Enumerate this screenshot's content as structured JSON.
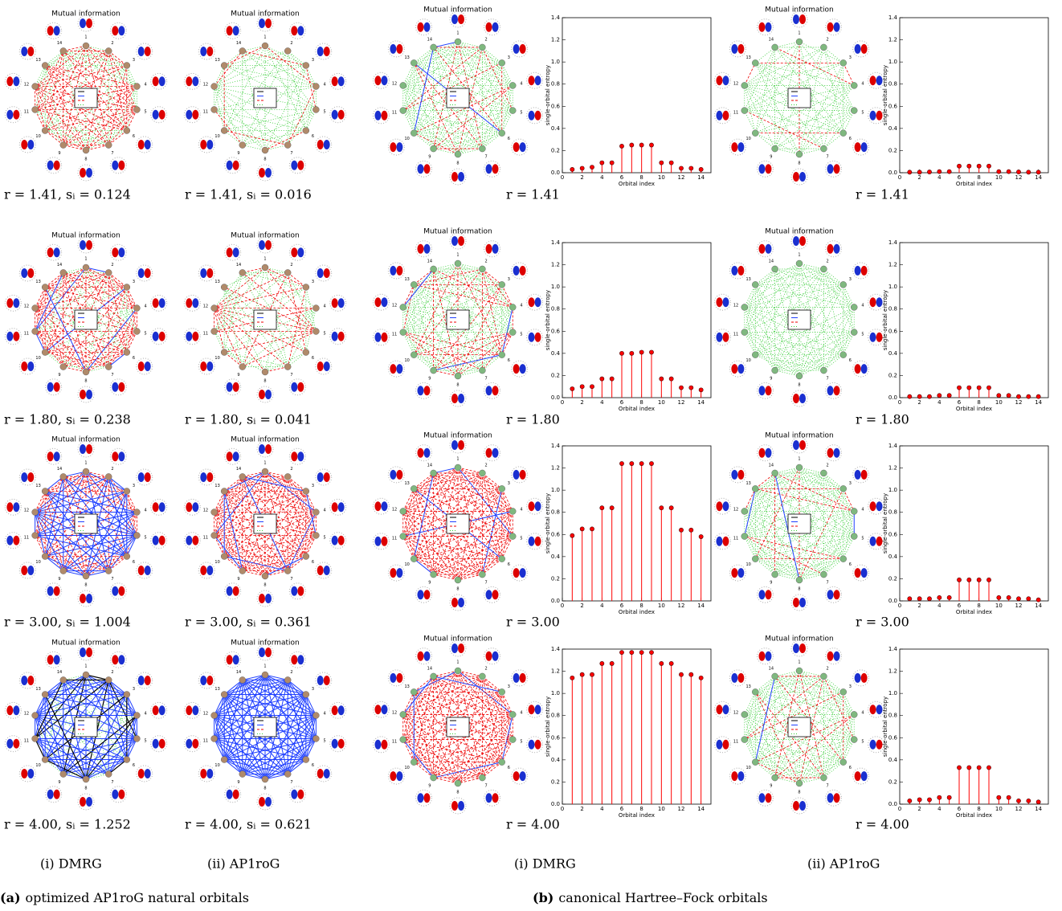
{
  "mi_title": "Mutual information",
  "node_labels": [
    "1",
    "2",
    "3",
    "4",
    "5",
    "6",
    "7",
    "8",
    "9",
    "10",
    "11",
    "12",
    "13",
    "14"
  ],
  "labels": [
    "r = 1.41, sᵢ = 0.124",
    "r = 1.41, sᵢ = 0.016",
    "r = 1.41",
    "r = 1.41",
    "r = 1.80, sᵢ = 0.238",
    "r = 1.80, sᵢ = 0.041",
    "r = 1.80",
    "r = 1.80",
    "r = 3.00, sᵢ = 1.004",
    "r = 3.00, sᵢ = 0.361",
    "r = 3.00",
    "r = 3.00",
    "r = 4.00, sᵢ = 1.252",
    "r = 4.00, sᵢ = 0.621",
    "r = 4.00",
    "r = 4.00"
  ],
  "subcaptions": [
    "(i) DMRG",
    "(ii) AP1roG",
    "(i) DMRG",
    "(ii) AP1roG"
  ],
  "captions": [
    {
      "tag": "(a)",
      "text": "optimized AP1roG natural orbitals"
    },
    {
      "tag": "(b)",
      "text": "canonical Hartree–Fock orbitals"
    }
  ],
  "chart_data": [
    {
      "type": "stem",
      "xlabel": "Orbital index",
      "ylabel": "single-orbital entropy",
      "color": "#ff0000",
      "x": [
        1,
        2,
        3,
        4,
        5,
        6,
        7,
        8,
        9,
        10,
        11,
        12,
        13,
        14
      ],
      "values": [
        0.03,
        0.04,
        0.05,
        0.09,
        0.09,
        0.24,
        0.25,
        0.25,
        0.25,
        0.09,
        0.09,
        0.04,
        0.04,
        0.03
      ],
      "xlim": [
        0,
        15
      ],
      "xticks": [
        0,
        2,
        4,
        6,
        8,
        10,
        12,
        14
      ],
      "ylim": [
        0,
        1.4
      ],
      "yticks": [
        {
          "value": 0,
          "label": "0.0"
        },
        {
          "value": 0.2,
          "label": "0.2"
        },
        {
          "value": 0.4,
          "label": "0.4"
        },
        {
          "value": 0.6,
          "label": "0.6"
        },
        {
          "value": 0.8,
          "label": "0.8"
        },
        {
          "value": 1,
          "label": "1.0"
        },
        {
          "value": 1.2,
          "label": "1.2"
        },
        {
          "value": 1.4,
          "label": "1.4"
        }
      ]
    },
    {
      "type": "stem",
      "xlabel": "Orbital index",
      "ylabel": "single-orbital entropy",
      "color": "#ff0000",
      "x": [
        1,
        2,
        3,
        4,
        5,
        6,
        7,
        8,
        9,
        10,
        11,
        12,
        13,
        14
      ],
      "values": [
        0.005,
        0.005,
        0.007,
        0.01,
        0.01,
        0.06,
        0.06,
        0.06,
        0.06,
        0.01,
        0.01,
        0.007,
        0.005,
        0.005
      ],
      "xlim": [
        0,
        15
      ],
      "xticks": [
        0,
        2,
        4,
        6,
        8,
        10,
        12,
        14
      ],
      "ylim": [
        0,
        1.4
      ],
      "yticks": [
        {
          "value": 0,
          "label": "0.0"
        },
        {
          "value": 0.2,
          "label": "0.2"
        },
        {
          "value": 0.4,
          "label": "0.4"
        },
        {
          "value": 0.6,
          "label": "0.6"
        },
        {
          "value": 0.8,
          "label": "0.8"
        },
        {
          "value": 1,
          "label": "1.0"
        },
        {
          "value": 1.2,
          "label": "1.2"
        },
        {
          "value": 1.4,
          "label": "1.4"
        }
      ]
    },
    {
      "type": "stem",
      "xlabel": "Orbital index",
      "ylabel": "single-orbital entropy",
      "color": "#ff0000",
      "x": [
        1,
        2,
        3,
        4,
        5,
        6,
        7,
        8,
        9,
        10,
        11,
        12,
        13,
        14
      ],
      "values": [
        0.08,
        0.1,
        0.1,
        0.17,
        0.17,
        0.4,
        0.4,
        0.41,
        0.41,
        0.17,
        0.17,
        0.09,
        0.09,
        0.07
      ],
      "xlim": [
        0,
        15
      ],
      "xticks": [
        0,
        2,
        4,
        6,
        8,
        10,
        12,
        14
      ],
      "ylim": [
        0,
        1.4
      ],
      "yticks": [
        {
          "value": 0,
          "label": "0.0"
        },
        {
          "value": 0.2,
          "label": "0.2"
        },
        {
          "value": 0.4,
          "label": "0.4"
        },
        {
          "value": 0.6,
          "label": "0.6"
        },
        {
          "value": 0.8,
          "label": "0.8"
        },
        {
          "value": 1,
          "label": "1.0"
        },
        {
          "value": 1.2,
          "label": "1.2"
        },
        {
          "value": 1.4,
          "label": "1.4"
        }
      ]
    },
    {
      "type": "stem",
      "xlabel": "Orbital index",
      "ylabel": "single-orbital entropy",
      "color": "#ff0000",
      "x": [
        1,
        2,
        3,
        4,
        5,
        6,
        7,
        8,
        9,
        10,
        11,
        12,
        13,
        14
      ],
      "values": [
        0.01,
        0.01,
        0.01,
        0.02,
        0.02,
        0.09,
        0.09,
        0.09,
        0.09,
        0.02,
        0.02,
        0.01,
        0.01,
        0.01
      ],
      "xlim": [
        0,
        15
      ],
      "xticks": [
        0,
        2,
        4,
        6,
        8,
        10,
        12,
        14
      ],
      "ylim": [
        0,
        1.4
      ],
      "yticks": [
        {
          "value": 0,
          "label": "0.0"
        },
        {
          "value": 0.2,
          "label": "0.2"
        },
        {
          "value": 0.4,
          "label": "0.4"
        },
        {
          "value": 0.6,
          "label": "0.6"
        },
        {
          "value": 0.8,
          "label": "0.8"
        },
        {
          "value": 1,
          "label": "1.0"
        },
        {
          "value": 1.2,
          "label": "1.2"
        },
        {
          "value": 1.4,
          "label": "1.4"
        }
      ]
    },
    {
      "type": "stem",
      "xlabel": "Orbital index",
      "ylabel": "single-orbital entropy",
      "color": "#ff0000",
      "x": [
        1,
        2,
        3,
        4,
        5,
        6,
        7,
        8,
        9,
        10,
        11,
        12,
        13,
        14
      ],
      "values": [
        0.59,
        0.65,
        0.65,
        0.84,
        0.84,
        1.24,
        1.24,
        1.24,
        1.24,
        0.84,
        0.84,
        0.64,
        0.64,
        0.58
      ],
      "xlim": [
        0,
        15
      ],
      "xticks": [
        0,
        2,
        4,
        6,
        8,
        10,
        12,
        14
      ],
      "ylim": [
        0,
        1.4
      ],
      "yticks": [
        {
          "value": 0,
          "label": "0.0"
        },
        {
          "value": 0.2,
          "label": "0.2"
        },
        {
          "value": 0.4,
          "label": "0.4"
        },
        {
          "value": 0.6,
          "label": "0.6"
        },
        {
          "value": 0.8,
          "label": "0.8"
        },
        {
          "value": 1,
          "label": "1.0"
        },
        {
          "value": 1.2,
          "label": "1.2"
        },
        {
          "value": 1.4,
          "label": "1.4"
        }
      ]
    },
    {
      "type": "stem",
      "xlabel": "Orbital index",
      "ylabel": "single-orbital entropy",
      "color": "#ff0000",
      "x": [
        1,
        2,
        3,
        4,
        5,
        6,
        7,
        8,
        9,
        10,
        11,
        12,
        13,
        14
      ],
      "values": [
        0.02,
        0.02,
        0.02,
        0.03,
        0.03,
        0.19,
        0.19,
        0.19,
        0.19,
        0.03,
        0.03,
        0.02,
        0.02,
        0.01
      ],
      "xlim": [
        0,
        15
      ],
      "xticks": [
        0,
        2,
        4,
        6,
        8,
        10,
        12,
        14
      ],
      "ylim": [
        0,
        1.4
      ],
      "yticks": [
        {
          "value": 0,
          "label": "0.0"
        },
        {
          "value": 0.2,
          "label": "0.2"
        },
        {
          "value": 0.4,
          "label": "0.4"
        },
        {
          "value": 0.6,
          "label": "0.6"
        },
        {
          "value": 0.8,
          "label": "0.8"
        },
        {
          "value": 1,
          "label": "1.0"
        },
        {
          "value": 1.2,
          "label": "1.2"
        },
        {
          "value": 1.4,
          "label": "1.4"
        }
      ]
    },
    {
      "type": "stem",
      "xlabel": "Orbital index",
      "ylabel": "single-orbital entropy",
      "color": "#ff0000",
      "x": [
        1,
        2,
        3,
        4,
        5,
        6,
        7,
        8,
        9,
        10,
        11,
        12,
        13,
        14
      ],
      "values": [
        1.14,
        1.17,
        1.17,
        1.27,
        1.27,
        1.37,
        1.37,
        1.37,
        1.37,
        1.27,
        1.27,
        1.17,
        1.17,
        1.14
      ],
      "xlim": [
        0,
        15
      ],
      "xticks": [
        0,
        2,
        4,
        6,
        8,
        10,
        12,
        14
      ],
      "ylim": [
        0,
        1.4
      ],
      "yticks": [
        {
          "value": 0,
          "label": "0.0"
        },
        {
          "value": 0.2,
          "label": "0.2"
        },
        {
          "value": 0.4,
          "label": "0.4"
        },
        {
          "value": 0.6,
          "label": "0.6"
        },
        {
          "value": 0.8,
          "label": "0.8"
        },
        {
          "value": 1,
          "label": "1.0"
        },
        {
          "value": 1.2,
          "label": "1.2"
        },
        {
          "value": 1.4,
          "label": "1.4"
        }
      ]
    },
    {
      "type": "stem",
      "xlabel": "Orbital index",
      "ylabel": "single-orbital entropy",
      "color": "#ff0000",
      "x": [
        1,
        2,
        3,
        4,
        5,
        6,
        7,
        8,
        9,
        10,
        11,
        12,
        13,
        14
      ],
      "values": [
        0.03,
        0.04,
        0.04,
        0.06,
        0.06,
        0.33,
        0.33,
        0.33,
        0.33,
        0.06,
        0.06,
        0.03,
        0.03,
        0.02
      ],
      "xlim": [
        0,
        15
      ],
      "xticks": [
        0,
        2,
        4,
        6,
        8,
        10,
        12,
        14
      ],
      "ylim": [
        0,
        1.4
      ],
      "yticks": [
        {
          "value": 0,
          "label": "0.0"
        },
        {
          "value": 0.2,
          "label": "0.2"
        },
        {
          "value": 0.4,
          "label": "0.4"
        },
        {
          "value": 0.6,
          "label": "0.6"
        },
        {
          "value": 0.8,
          "label": "0.8"
        },
        {
          "value": 1,
          "label": "1.0"
        },
        {
          "value": 1.2,
          "label": "1.2"
        },
        {
          "value": 1.4,
          "label": "1.4"
        }
      ]
    }
  ]
}
